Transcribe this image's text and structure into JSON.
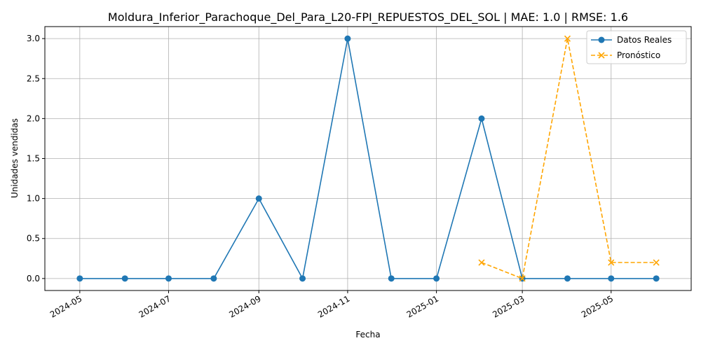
{
  "chart_data": {
    "type": "line",
    "title": "Moldura_Inferior_Parachoque_Del_Para_L20-FPI_REPUESTOS_DEL_SOL | MAE: 1.0 | RMSE: 1.6",
    "xlabel": "Fecha",
    "ylabel": "Unidades vendidas",
    "xlim": [
      "2024-04-07",
      "2025-06-25"
    ],
    "ylim": [
      -0.15,
      3.15
    ],
    "x_ticks": [
      "2024-05",
      "2024-07",
      "2024-09",
      "2024-11",
      "2025-01",
      "2025-03",
      "2025-05"
    ],
    "y_ticks": [
      "0.0",
      "0.5",
      "1.0",
      "1.5",
      "2.0",
      "2.5",
      "3.0"
    ],
    "grid": true,
    "legend_position": "top-right",
    "series": [
      {
        "name": "Datos Reales",
        "color": "#1f77b4",
        "marker": "circle",
        "line_style": "solid",
        "x": [
          "2024-05-01",
          "2024-06-01",
          "2024-07-01",
          "2024-08-01",
          "2024-09-01",
          "2024-10-01",
          "2024-11-01",
          "2024-12-01",
          "2025-01-01",
          "2025-02-01",
          "2025-03-01",
          "2025-04-01",
          "2025-05-01",
          "2025-06-01"
        ],
        "y": [
          0,
          0,
          0,
          0,
          1,
          0,
          3,
          0,
          0,
          2,
          0,
          0,
          0,
          0
        ]
      },
      {
        "name": "Pronóstico",
        "color": "#ffa500",
        "marker": "x",
        "line_style": "dashed",
        "x": [
          "2025-02-01",
          "2025-03-01",
          "2025-04-01",
          "2025-05-01",
          "2025-06-01"
        ],
        "y": [
          0.2,
          0.0,
          3.0,
          0.2,
          0.2
        ]
      }
    ]
  }
}
